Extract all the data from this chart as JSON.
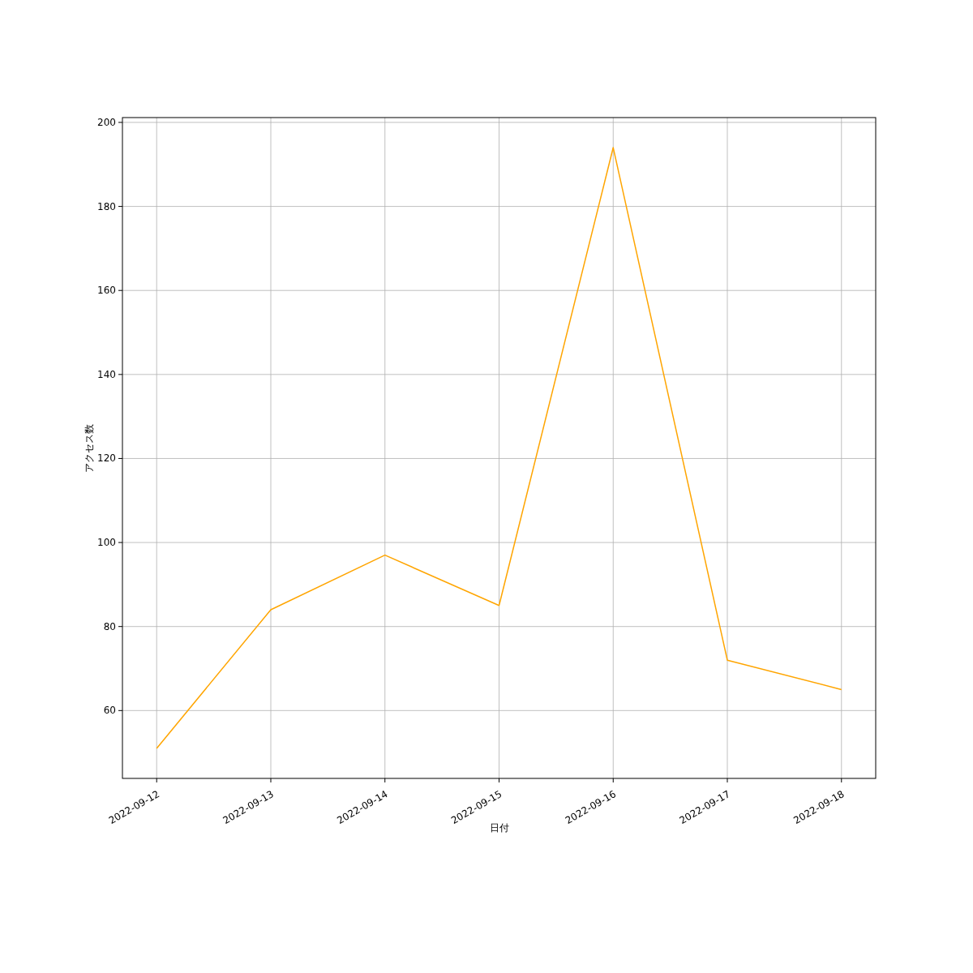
{
  "chart_data": {
    "type": "line",
    "xlabel": "日付",
    "ylabel": "アクセス数",
    "x": [
      "2022-09-12",
      "2022-09-13",
      "2022-09-14",
      "2022-09-15",
      "2022-09-16",
      "2022-09-17",
      "2022-09-18"
    ],
    "series": [
      {
        "color": "#ffa500",
        "values": [
          51,
          84,
          97,
          85,
          194,
          72,
          65
        ]
      }
    ],
    "xlim": [
      "2022-09-11T16:48",
      "2022-09-18T07:12"
    ],
    "xticks": [
      "2022-09-12",
      "2022-09-13",
      "2022-09-14",
      "2022-09-15",
      "2022-09-16",
      "2022-09-17",
      "2022-09-18"
    ],
    "ylim": [
      43.85,
      201.15
    ],
    "yticks": [
      60,
      80,
      100,
      120,
      140,
      160,
      180,
      200
    ],
    "grid": true,
    "marker": "none",
    "line_style": "solid"
  }
}
